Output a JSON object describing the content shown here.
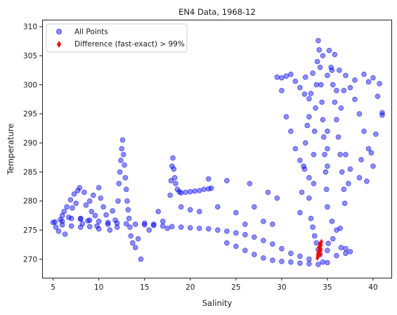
{
  "chart_data": {
    "type": "scatter",
    "title": "EN4 Data, 1968-12",
    "xlabel": "Salinity",
    "ylabel": "Temperature",
    "xlim": [
      3.8,
      42.0
    ],
    "ylim": [
      266.8,
      311.2
    ],
    "xticks": [
      5,
      10,
      15,
      20,
      25,
      30,
      35,
      40
    ],
    "yticks": [
      270,
      275,
      280,
      285,
      290,
      295,
      300,
      305,
      310
    ],
    "grid": false,
    "legend_position": "top-left",
    "series": [
      {
        "name": "All Points",
        "marker": "circle",
        "color": "#0000ff",
        "alpha": 0.45,
        "points": [
          [
            5.0,
            276.3
          ],
          [
            5.3,
            275.5
          ],
          [
            5.6,
            274.8
          ],
          [
            5.8,
            276.8
          ],
          [
            6.0,
            277.5
          ],
          [
            6.2,
            278.2
          ],
          [
            6.3,
            274.3
          ],
          [
            6.5,
            279.0
          ],
          [
            6.7,
            277.2
          ],
          [
            6.9,
            280.2
          ],
          [
            7.1,
            278.8
          ],
          [
            7.3,
            281.2
          ],
          [
            7.5,
            279.6
          ],
          [
            7.7,
            281.8
          ],
          [
            7.9,
            282.3
          ],
          [
            8.0,
            277.0
          ],
          [
            8.2,
            276.1
          ],
          [
            8.4,
            281.5
          ],
          [
            8.6,
            279.3
          ],
          [
            8.8,
            276.6
          ],
          [
            9.0,
            280.0
          ],
          [
            9.2,
            278.2
          ],
          [
            9.4,
            281.0
          ],
          [
            9.6,
            277.5
          ],
          [
            9.8,
            275.7
          ],
          [
            10.0,
            282.3
          ],
          [
            10.2,
            280.5
          ],
          [
            10.5,
            279.0
          ],
          [
            10.8,
            277.6
          ],
          [
            11.0,
            276.0
          ],
          [
            11.2,
            275.0
          ],
          [
            11.5,
            278.3
          ],
          [
            11.8,
            276.7
          ],
          [
            12.0,
            275.5
          ],
          [
            12.1,
            280.0
          ],
          [
            12.2,
            283.0
          ],
          [
            12.3,
            285.0
          ],
          [
            12.4,
            287.0
          ],
          [
            12.5,
            289.0
          ],
          [
            12.6,
            290.5
          ],
          [
            12.7,
            288.0
          ],
          [
            12.8,
            286.2
          ],
          [
            12.9,
            284.0
          ],
          [
            13.0,
            282.0
          ],
          [
            13.1,
            280.0
          ],
          [
            13.2,
            278.5
          ],
          [
            13.3,
            277.0
          ],
          [
            13.4,
            275.5
          ],
          [
            13.5,
            274.0
          ],
          [
            13.7,
            272.8
          ],
          [
            14.0,
            272.0
          ],
          [
            14.3,
            273.5
          ],
          [
            14.6,
            270.0
          ],
          [
            15.0,
            276.2
          ],
          [
            15.5,
            275.0
          ],
          [
            16.0,
            276.0
          ],
          [
            16.5,
            278.2
          ],
          [
            17.0,
            276.5
          ],
          [
            17.5,
            275.3
          ],
          [
            17.8,
            281.0
          ],
          [
            17.9,
            283.5
          ],
          [
            18.0,
            286.0
          ],
          [
            18.1,
            287.4
          ],
          [
            18.2,
            285.5
          ],
          [
            18.3,
            284.0
          ],
          [
            18.4,
            283.0
          ],
          [
            18.6,
            282.0
          ],
          [
            18.8,
            281.6
          ],
          [
            19.0,
            281.4
          ],
          [
            19.5,
            281.5
          ],
          [
            20.0,
            281.6
          ],
          [
            20.5,
            281.7
          ],
          [
            21.0,
            281.8
          ],
          [
            21.5,
            282.0
          ],
          [
            22.0,
            282.1
          ],
          [
            22.3,
            282.2
          ],
          [
            19.0,
            279.0
          ],
          [
            20.0,
            278.5
          ],
          [
            21.0,
            278.2
          ],
          [
            22.0,
            283.8
          ],
          [
            23.0,
            279.0
          ],
          [
            24.0,
            283.5
          ],
          [
            25.0,
            278.0
          ],
          [
            26.0,
            276.0
          ],
          [
            26.5,
            283.0
          ],
          [
            27.0,
            279.0
          ],
          [
            28.0,
            276.5
          ],
          [
            28.5,
            281.5
          ],
          [
            29.0,
            276.0
          ],
          [
            29.5,
            280.5
          ],
          [
            30.0,
            301.2
          ],
          [
            30.5,
            301.5
          ],
          [
            31.0,
            301.8
          ],
          [
            31.5,
            300.6
          ],
          [
            32.0,
            299.5
          ],
          [
            32.5,
            298.4
          ],
          [
            33.0,
            297.6
          ],
          [
            29.5,
            301.3
          ],
          [
            30.0,
            299.0
          ],
          [
            30.5,
            294.5
          ],
          [
            31.0,
            292.0
          ],
          [
            31.5,
            289.0
          ],
          [
            32.0,
            287.0
          ],
          [
            32.5,
            285.5
          ],
          [
            33.0,
            284.0
          ],
          [
            33.5,
            283.0
          ],
          [
            33.0,
            280.5
          ],
          [
            33.2,
            277.0
          ],
          [
            33.4,
            275.5
          ],
          [
            33.6,
            274.0
          ],
          [
            33.8,
            272.8
          ],
          [
            34.0,
            271.6
          ],
          [
            34.2,
            270.8
          ],
          [
            33.5,
            288.0
          ],
          [
            33.6,
            292.0
          ],
          [
            33.7,
            296.0
          ],
          [
            33.8,
            300.0
          ],
          [
            33.9,
            304.0
          ],
          [
            34.0,
            307.6
          ],
          [
            34.1,
            306.0
          ],
          [
            34.2,
            303.0
          ],
          [
            34.3,
            300.0
          ],
          [
            34.4,
            297.0
          ],
          [
            34.5,
            294.0
          ],
          [
            34.6,
            291.0
          ],
          [
            34.7,
            288.0
          ],
          [
            34.8,
            285.0
          ],
          [
            34.9,
            282.0
          ],
          [
            35.0,
            279.0
          ],
          [
            35.0,
            301.6
          ],
          [
            35.2,
            305.9
          ],
          [
            35.4,
            303.0
          ],
          [
            35.6,
            300.0
          ],
          [
            35.8,
            297.0
          ],
          [
            36.0,
            294.0
          ],
          [
            36.2,
            291.0
          ],
          [
            36.4,
            288.0
          ],
          [
            36.6,
            285.0
          ],
          [
            36.8,
            282.0
          ],
          [
            37.0,
            301.6
          ],
          [
            37.5,
            299.5
          ],
          [
            38.0,
            297.5
          ],
          [
            38.5,
            295.0
          ],
          [
            39.0,
            301.8
          ],
          [
            39.5,
            300.5
          ],
          [
            40.0,
            301.2
          ],
          [
            40.5,
            298.0
          ],
          [
            41.0,
            294.8
          ],
          [
            39.0,
            292.0
          ],
          [
            39.5,
            289.0
          ],
          [
            40.0,
            286.0
          ],
          [
            38.5,
            284.0
          ],
          [
            37.5,
            285.5
          ],
          [
            37.0,
            288.0
          ],
          [
            36.5,
            296.0
          ],
          [
            36.0,
            299.0
          ],
          [
            35.5,
            302.5
          ],
          [
            35.0,
            292.0
          ],
          [
            35.0,
            289.0
          ],
          [
            35.0,
            286.0
          ],
          [
            35.5,
            276.5
          ],
          [
            36.0,
            275.0
          ],
          [
            36.5,
            272.0
          ],
          [
            37.0,
            271.8
          ],
          [
            35.0,
            271.5
          ],
          [
            34.5,
            269.5
          ],
          [
            33.0,
            270.0
          ],
          [
            32.0,
            270.5
          ],
          [
            31.0,
            271.0
          ],
          [
            30.0,
            271.8
          ],
          [
            29.0,
            272.6
          ],
          [
            28.0,
            273.2
          ],
          [
            27.0,
            273.8
          ],
          [
            26.0,
            274.2
          ],
          [
            25.0,
            274.5
          ],
          [
            24.0,
            274.8
          ],
          [
            23.0,
            275.0
          ],
          [
            22.0,
            275.2
          ],
          [
            21.0,
            275.3
          ],
          [
            20.0,
            275.4
          ],
          [
            19.0,
            275.5
          ],
          [
            18.0,
            275.6
          ],
          [
            17.0,
            275.7
          ],
          [
            16.0,
            275.8
          ],
          [
            15.0,
            275.9
          ],
          [
            14.0,
            276.0
          ],
          [
            13.0,
            276.1
          ],
          [
            12.0,
            276.2
          ],
          [
            11.0,
            276.3
          ],
          [
            10.0,
            276.5
          ],
          [
            9.0,
            276.7
          ],
          [
            8.0,
            276.9
          ],
          [
            7.0,
            277.0
          ],
          [
            6.0,
            276.5
          ],
          [
            5.2,
            276.4
          ],
          [
            6.0,
            275.9
          ],
          [
            7.0,
            275.7
          ],
          [
            8.0,
            275.5
          ],
          [
            9.0,
            275.6
          ],
          [
            10.0,
            275.2
          ],
          [
            24.0,
            272.8
          ],
          [
            25.0,
            272.2
          ],
          [
            26.0,
            271.5
          ],
          [
            27.0,
            270.8
          ],
          [
            28.0,
            270.2
          ],
          [
            29.0,
            269.8
          ],
          [
            30.0,
            269.6
          ],
          [
            31.0,
            269.5
          ],
          [
            32.0,
            269.3
          ],
          [
            33.0,
            269.2
          ],
          [
            34.0,
            269.1
          ],
          [
            35.0,
            269.4
          ],
          [
            36.0,
            270.6
          ],
          [
            37.0,
            271.0
          ],
          [
            37.5,
            271.3
          ],
          [
            32.0,
            278.0
          ],
          [
            32.2,
            281.5
          ],
          [
            32.4,
            286.0
          ],
          [
            32.6,
            290.0
          ],
          [
            32.8,
            293.0
          ],
          [
            33.0,
            294.5
          ],
          [
            33.2,
            298.5
          ],
          [
            33.4,
            302.0
          ],
          [
            32.6,
            301.3
          ],
          [
            34.5,
            305.0
          ],
          [
            35.8,
            305.2
          ],
          [
            36.3,
            302.5
          ],
          [
            36.8,
            299.0
          ],
          [
            38.0,
            300.8
          ],
          [
            40.7,
            300.2
          ],
          [
            41.0,
            295.2
          ],
          [
            40.3,
            291.5
          ],
          [
            39.8,
            288.3
          ],
          [
            39.3,
            283.4
          ],
          [
            38.7,
            287.1
          ],
          [
            37.3,
            283.0
          ],
          [
            36.9,
            279.6
          ],
          [
            36.4,
            275.3
          ],
          [
            35.6,
            273.5
          ],
          [
            35.1,
            272.7
          ]
        ]
      },
      {
        "name": "Difference (fast-exact) > 99%",
        "marker": "thin_diamond",
        "color": "#ff0000",
        "alpha": 1.0,
        "points": [
          [
            33.9,
            270.2
          ],
          [
            33.95,
            270.6
          ],
          [
            34.0,
            271.0
          ],
          [
            34.05,
            271.3
          ],
          [
            34.1,
            271.6
          ],
          [
            34.15,
            271.9
          ],
          [
            34.2,
            272.2
          ],
          [
            34.25,
            272.5
          ],
          [
            34.3,
            272.8
          ],
          [
            34.35,
            273.0
          ],
          [
            34.0,
            270.5
          ],
          [
            34.1,
            271.2
          ],
          [
            34.2,
            271.8
          ],
          [
            34.3,
            272.4
          ],
          [
            33.95,
            270.9
          ],
          [
            34.15,
            272.6
          ],
          [
            34.25,
            271.4
          ],
          [
            34.05,
            272.0
          ],
          [
            34.2,
            270.8
          ],
          [
            34.3,
            271.7
          ]
        ]
      }
    ]
  }
}
